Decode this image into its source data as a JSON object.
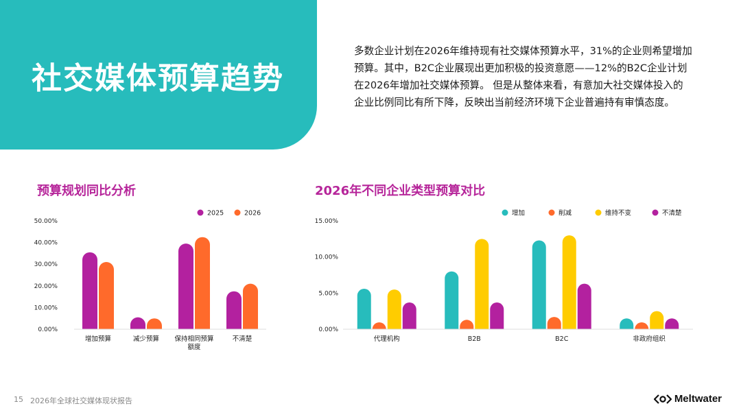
{
  "header": {
    "title": "社交媒体预算趋势",
    "intro_lines": [
      "多数企业计划在2026年维持现有社交媒体预算水平，31%的企业则希望增加",
      "预算。其中，B2C企业展现出更加积极的投资意愿——12%的B2C企业计划",
      "在2026年增加社交媒体预算。 但是从整体来看，有意加大社交媒体投入的",
      "企业比例同比有所下降，反映出当前经济环境下企业普遍持有审慎态度。"
    ]
  },
  "chart_data": [
    {
      "type": "bar",
      "title": "预算规划同比分析",
      "categories": [
        [
          "增加预算"
        ],
        [
          "减少预算"
        ],
        [
          "保持相同预算",
          "额度"
        ],
        [
          "不清楚"
        ]
      ],
      "series": [
        {
          "name": "2025",
          "color": "#b3219f",
          "values": [
            35.5,
            5.5,
            39.5,
            17.5
          ]
        },
        {
          "name": "2026",
          "color": "#ff6a2b",
          "values": [
            31,
            5,
            42.5,
            21
          ]
        }
      ],
      "ylim": [
        0,
        50
      ],
      "yticks": [
        "0.00%",
        "10.00%",
        "20.00%",
        "30.00%",
        "40.00%",
        "50.00%"
      ],
      "legend": "top-right"
    },
    {
      "type": "bar",
      "title": "2026年不同企业类型预算对比",
      "categories": [
        [
          "代理机构"
        ],
        [
          "B2B"
        ],
        [
          "B2C"
        ],
        [
          "非政府组织"
        ]
      ],
      "series": [
        {
          "name": "增加",
          "color": "#27bcbc",
          "values": [
            5.6,
            8,
            12.3,
            1.5
          ]
        },
        {
          "name": "削减",
          "color": "#ff6a2b",
          "values": [
            0.5,
            1.3,
            1.7,
            0.3
          ]
        },
        {
          "name": "维持不变",
          "color": "#ffcc00",
          "values": [
            5.5,
            12.5,
            13,
            2.5
          ]
        },
        {
          "name": "不清楚",
          "color": "#b3219f",
          "values": [
            3.7,
            3.7,
            6.3,
            1.5
          ]
        }
      ],
      "ylim": [
        0,
        15
      ],
      "yticks": [
        "0.00%",
        "5.00%",
        "10.00%",
        "15.00%"
      ],
      "legend": "top-right"
    }
  ],
  "footer": {
    "page_number": "15",
    "report_title": "2026年全球社交媒体现状报告",
    "brand": "Meltwater"
  }
}
